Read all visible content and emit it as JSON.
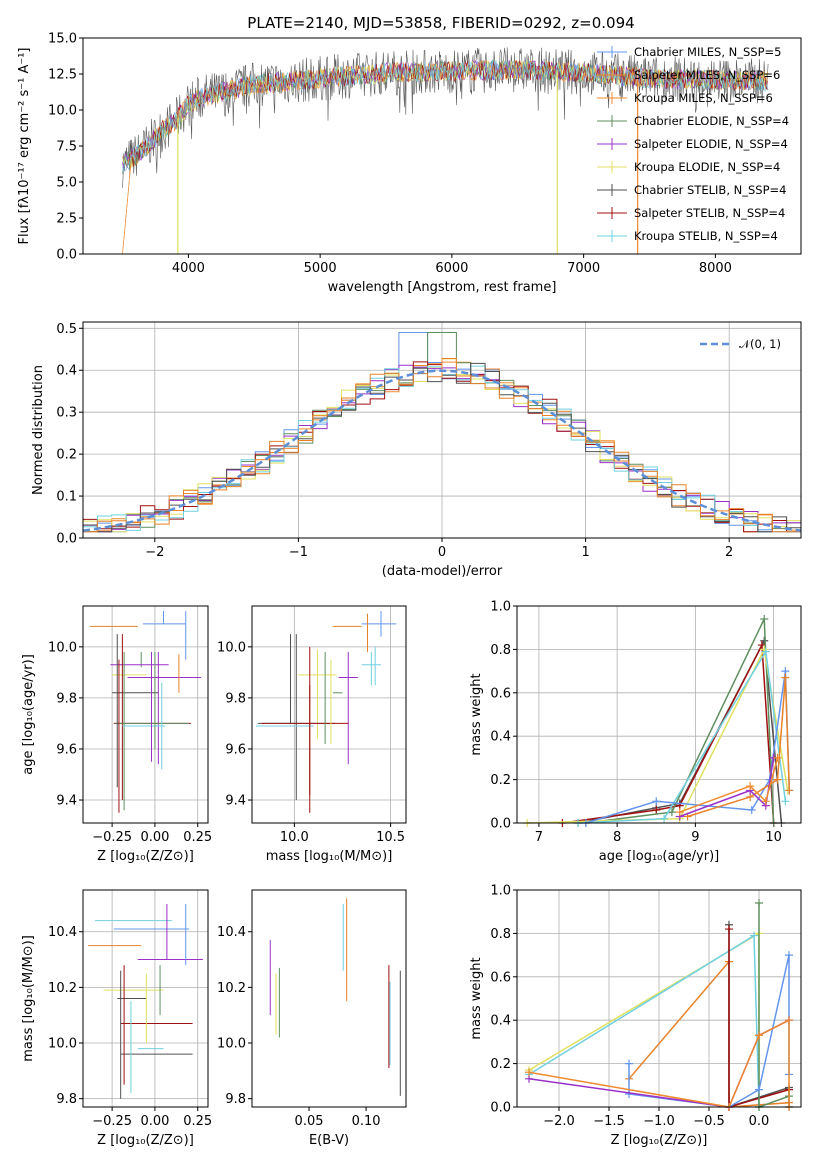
{
  "colors": [
    "#6495ED",
    "#E8822A",
    "#F08A2E",
    "#5F8F5F",
    "#9B30C8",
    "#E0E060",
    "#505050",
    "#A01010",
    "#70D0E0"
  ],
  "chart_data": [
    {
      "type": "line",
      "id": "spectrum",
      "title": "PLATE=2140, MJD=53858, FIBERID=0292, z=0.094",
      "xlabel": "wavelength [Angstrom, rest frame]",
      "ylabel": "Flux [fλ10⁻¹⁷ erg cm⁻² s⁻¹ A⁻¹]",
      "xlim": [
        3200,
        8650
      ],
      "ylim": [
        0,
        15
      ],
      "xticks": [
        "4000",
        "5000",
        "6000",
        "7000",
        "8000"
      ],
      "yticks": [
        "0.0",
        "2.5",
        "5.0",
        "7.5",
        "10.0",
        "12.5",
        "15.0"
      ],
      "legend_position": "right",
      "legend": [
        "Chabrier MILES, N_SSP=5",
        "Salpeter MILES, N_SSP=6",
        "Kroupa MILES, N_SSP=6",
        "Chabrier ELODIE, N_SSP=4",
        "Salpeter ELODIE, N_SSP=4",
        "Kroupa ELODIE, N_SSP=4",
        "Chabrier STELIB, N_SSP=4",
        "Salpeter STELIB, N_SSP=4",
        "Kroupa STELIB, N_SSP=4"
      ],
      "continuum": [
        [
          3500,
          6.2
        ],
        [
          3600,
          6.8
        ],
        [
          3700,
          7.6
        ],
        [
          3800,
          8.6
        ],
        [
          3900,
          9.2
        ],
        [
          4000,
          10.4
        ],
        [
          4100,
          10.9
        ],
        [
          4300,
          11.3
        ],
        [
          4500,
          11.8
        ],
        [
          4800,
          12.0
        ],
        [
          5000,
          12.2
        ],
        [
          5500,
          12.6
        ],
        [
          6000,
          12.7
        ],
        [
          6500,
          12.8
        ],
        [
          7000,
          12.6
        ],
        [
          7500,
          12.2
        ],
        [
          8000,
          12.1
        ],
        [
          8400,
          12.0
        ]
      ],
      "spikes_to_zero": [
        3920,
        6800,
        7410
      ]
    },
    {
      "type": "histogram",
      "id": "residuals",
      "xlabel": "(data-model)/error",
      "ylabel": "Normed distribution",
      "xlim": [
        -2.5,
        2.5
      ],
      "ylim": [
        0,
        0.515
      ],
      "xticks": [
        "−2",
        "−1",
        "0",
        "1",
        "2"
      ],
      "yticks": [
        "0.0",
        "0.1",
        "0.2",
        "0.3",
        "0.4",
        "0.5"
      ],
      "grid": true,
      "legend": "𝒩(0, 1)",
      "legend_position": "top-right",
      "reference_curve": "normal(0,1)"
    },
    {
      "type": "scatter",
      "id": "age-vs-Z",
      "xlabel": "Z [log₁₀(Z/Z⊙)]",
      "ylabel": "age  [log₁₀(age/yr)]",
      "xlim": [
        -0.42,
        0.31
      ],
      "ylim": [
        9.31,
        10.16
      ],
      "xticks": [
        "−0.25",
        "0.00",
        "0.25"
      ],
      "yticks": [
        "9.4",
        "9.6",
        "9.8",
        "10.0"
      ],
      "grid": true,
      "points": [
        {
          "x": 0.05,
          "y": 10.09,
          "xerr": [
            0.12,
            0.13
          ],
          "yerr": [
            0.0,
            0.05
          ]
        },
        {
          "x": -0.24,
          "y": 10.08,
          "xerr": [
            0.14,
            0.14
          ],
          "yerr": [
            0.0,
            0.0
          ]
        },
        {
          "x": -0.08,
          "y": 9.98,
          "xerr": [
            0.0,
            0.0
          ],
          "yerr": [
            0.06,
            0.0
          ]
        },
        {
          "x": -0.16,
          "y": 9.93,
          "xerr": [
            0.1,
            0.24
          ],
          "yerr": [
            0.0,
            0.0
          ]
        },
        {
          "x": 0.02,
          "y": 9.88,
          "xerr": [
            0.18,
            0.25
          ],
          "yerr": [
            0.34,
            0.1
          ]
        },
        {
          "x": -0.15,
          "y": 9.89,
          "xerr": [
            0.1,
            0.1
          ],
          "yerr": [
            0.0,
            0.0
          ]
        },
        {
          "x": -0.08,
          "y": 9.82,
          "xerr": [
            0.17,
            0.1
          ],
          "yerr": [
            0.0,
            0.0
          ]
        },
        {
          "x": -0.19,
          "y": 9.7,
          "xerr": [
            0.05,
            0.4
          ],
          "yerr": [
            0.3,
            0.35
          ]
        },
        {
          "x": -0.18,
          "y": 9.7,
          "xerr": [
            0.05,
            0.38
          ],
          "yerr": [
            0.34,
            0.28
          ]
        },
        {
          "x": -0.16,
          "y": 9.69,
          "xerr": [
            0.03,
            0.22
          ],
          "yerr": [
            0.0,
            0.0
          ]
        }
      ]
    },
    {
      "type": "scatter",
      "id": "age-vs-mass",
      "xlabel": "mass [log₁₀(M/M⊙)]",
      "xlim": [
        9.78,
        10.58
      ],
      "ylim": [
        9.31,
        10.16
      ],
      "xticks": [
        "10.0",
        "10.5"
      ],
      "yticks": [
        "9.4",
        "9.6",
        "9.8",
        "10.0"
      ],
      "grid": true,
      "points": [
        {
          "x": 10.45,
          "y": 10.09,
          "xerr": [
            0.1,
            0.08
          ],
          "yerr": [
            0.05,
            0.05
          ]
        },
        {
          "x": 10.35,
          "y": 10.08,
          "xerr": [
            0.15,
            0.0
          ],
          "yerr": [
            0.0,
            0.0
          ]
        },
        {
          "x": 10.4,
          "y": 9.93,
          "xerr": [
            0.05,
            0.05
          ],
          "yerr": [
            0.08,
            0.05
          ]
        },
        {
          "x": 10.28,
          "y": 9.88,
          "xerr": [
            0.05,
            0.05
          ],
          "yerr": [
            0.34,
            0.1
          ]
        },
        {
          "x": 10.12,
          "y": 9.89,
          "xerr": [
            0.1,
            0.1
          ],
          "yerr": [
            0.25,
            0.1
          ]
        },
        {
          "x": 10.2,
          "y": 9.82,
          "xerr": [
            0.0,
            0.05
          ],
          "yerr": [
            0.0,
            0.0
          ]
        },
        {
          "x": 10.01,
          "y": 9.7,
          "xerr": [
            0.2,
            0.2
          ],
          "yerr": [
            0.3,
            0.35
          ]
        },
        {
          "x": 10.08,
          "y": 9.7,
          "xerr": [
            0.25,
            0.2
          ],
          "yerr": [
            0.28,
            0.3
          ]
        },
        {
          "x": 10.0,
          "y": 9.69,
          "xerr": [
            0.2,
            0.1
          ],
          "yerr": [
            0.0,
            0.0
          ]
        }
      ]
    },
    {
      "type": "line",
      "id": "weight-vs-age",
      "xlabel": "age  [log₁₀(age/yr)]",
      "ylabel": "mass weight",
      "xlim": [
        6.72,
        10.35
      ],
      "ylim": [
        0,
        1.0
      ],
      "xticks": [
        "7",
        "8",
        "9",
        "10"
      ],
      "yticks": [
        "0.0",
        "0.2",
        "0.4",
        "0.6",
        "0.8",
        "1.0"
      ],
      "grid": true
    },
    {
      "type": "scatter",
      "id": "mass-vs-Z",
      "xlabel": "Z [log₁₀(Z/Z⊙)]",
      "ylabel": "mass [log₁₀(M/M⊙)]",
      "xlim": [
        -0.42,
        0.31
      ],
      "ylim": [
        9.77,
        10.55
      ],
      "xticks": [
        "−0.25",
        "0.00",
        "0.25"
      ],
      "yticks": [
        "9.8",
        "10.0",
        "10.2",
        "10.4"
      ],
      "grid": true
    },
    {
      "type": "scatter",
      "id": "mass-vs-ebv",
      "xlabel": "E(B-V)",
      "xlim": [
        0.0,
        0.135
      ],
      "ylim": [
        9.77,
        10.55
      ],
      "xticks": [
        "0.05",
        "0.10"
      ],
      "yticks": [
        "9.8",
        "10.0",
        "10.2",
        "10.4"
      ],
      "grid": false
    },
    {
      "type": "line",
      "id": "weight-vs-Z",
      "xlabel": "Z [log₁₀(Z/Z⊙)]",
      "ylabel": "mass weight",
      "xlim": [
        -2.42,
        0.42
      ],
      "ylim": [
        0,
        1.0
      ],
      "xticks": [
        "−2.0",
        "−1.5",
        "−1.0",
        "−0.5",
        "0.0"
      ],
      "yticks": [
        "0.0",
        "0.2",
        "0.4",
        "0.6",
        "0.8",
        "1.0"
      ],
      "grid": true
    }
  ]
}
